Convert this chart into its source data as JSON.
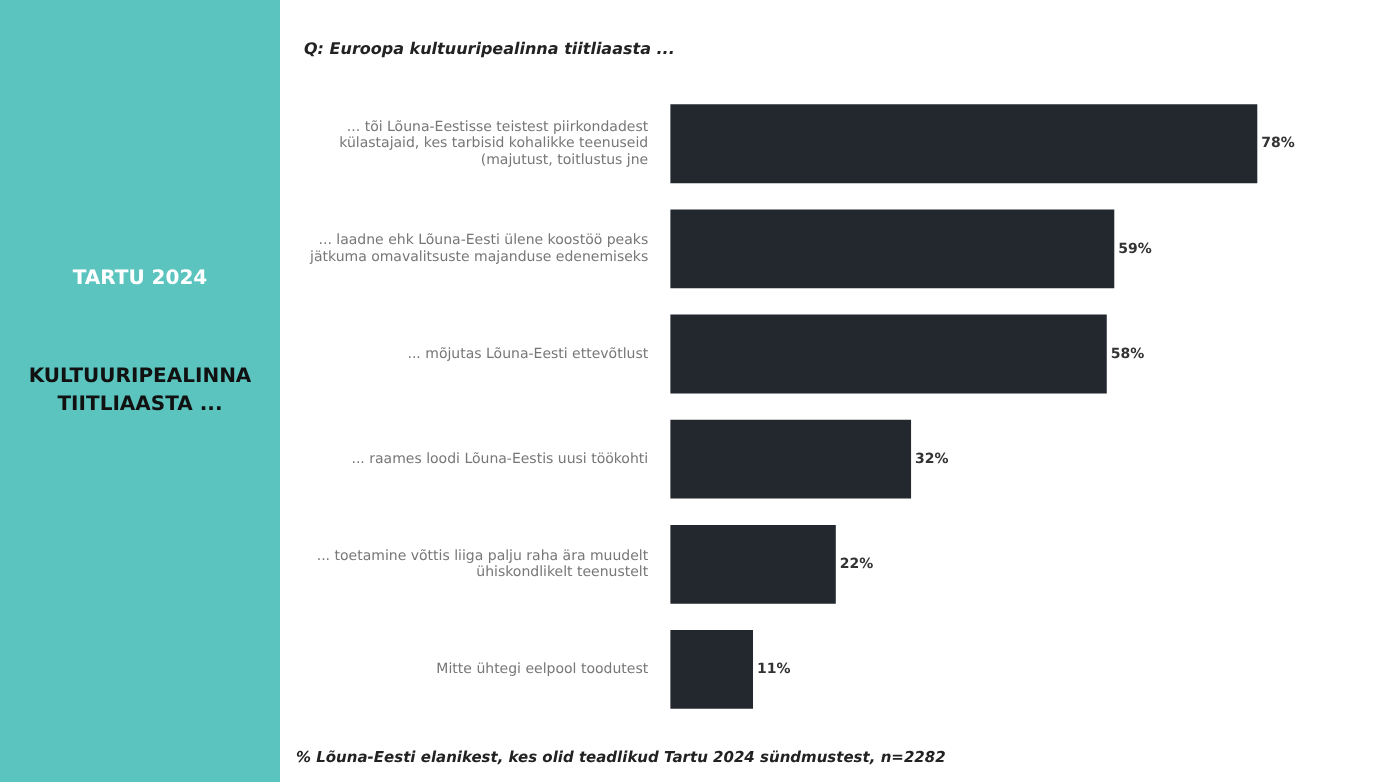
{
  "chart_data": {
    "type": "bar",
    "orientation": "horizontal",
    "title": "Q: Euroopa kultuuripealinna tiitliaasta ...",
    "categories": [
      "... tõi Lõuna-Eestisse teistest piirkondadest külastajaid, kes tarbisid kohalikke teenuseid (majutust, toitlustus jne",
      "... laadne ehk Lõuna-Eesti ülene koostöö peaks jätkuma omavalitsuste majanduse edenemiseks",
      "... mõjutas Lõuna-Eesti ettevõtlust",
      "... raames loodi Lõuna-Eestis uusi töökohti",
      "... toetamine võttis liiga palju raha ära muudelt ühiskondlikelt teenustelt",
      "Mitte ühtegi eelpool toodutest"
    ],
    "values": [
      78,
      59,
      58,
      32,
      22,
      11
    ],
    "value_labels": [
      "78%",
      "59%",
      "58%",
      "32%",
      "22%",
      "11%"
    ],
    "color": "#23272e",
    "annotations": [
      "TARTU 2024",
      "KULTUURIPEALINNA TIITLIAASTA ...",
      "% Lõuna-Eesti elanikest, kes olid teadlikud Tartu 2024 sündmustest, n=2282"
    ]
  }
}
